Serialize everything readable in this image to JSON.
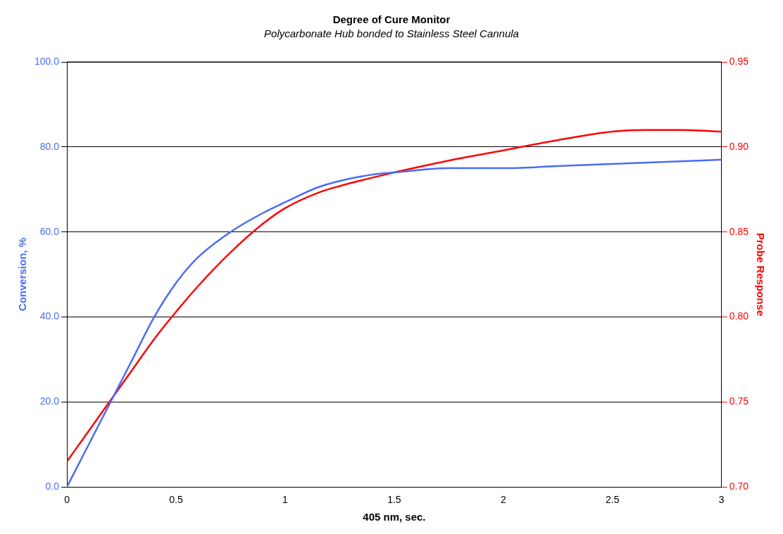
{
  "chart_data": {
    "type": "line",
    "title": "Degree of Cure Monitor",
    "subtitle": "Polycarbonate Hub bonded to Stainless Steel Cannula",
    "xlabel": "405 nm, sec.",
    "ylabel": "Conversion, %",
    "y2label": "Probe Response",
    "xlim": [
      0,
      3
    ],
    "xticks": [
      0,
      0.5,
      1,
      1.5,
      2,
      2.5,
      3
    ],
    "ylim": [
      0,
      100
    ],
    "yticks": [
      {
        "value": 0,
        "label": "0.0"
      },
      {
        "value": 20,
        "label": "20.0"
      },
      {
        "value": 40,
        "label": "40.0"
      },
      {
        "value": 60,
        "label": "60.0"
      },
      {
        "value": 80,
        "label": "80.0"
      },
      {
        "value": 100,
        "label": "100.0"
      }
    ],
    "y2lim": [
      0.7,
      0.95
    ],
    "y2ticks": [
      {
        "value": 0.7,
        "label": "0.70"
      },
      {
        "value": 0.75,
        "label": "0.75"
      },
      {
        "value": 0.8,
        "label": "0.80"
      },
      {
        "value": 0.85,
        "label": "0.85"
      },
      {
        "value": 0.9,
        "label": "0.90"
      },
      {
        "value": 0.95,
        "label": "0.95"
      }
    ],
    "grid": "y",
    "legend": false,
    "marker": "none",
    "line_style": "solid",
    "series": [
      {
        "color": "#4a6cf7",
        "x": [
          0,
          0.1,
          0.2,
          0.3,
          0.4,
          0.5,
          0.6,
          0.75,
          0.9,
          1,
          1.15,
          1.25,
          1.4,
          1.5,
          1.75,
          2,
          2.25,
          2.5,
          2.75,
          3
        ],
        "values": [
          0,
          10,
          20,
          30,
          40,
          48,
          54,
          60,
          64.5,
          67,
          70.5,
          72,
          73.5,
          74,
          75,
          75,
          75.5,
          76,
          76.5,
          77
        ]
      },
      {
        "color": "#ff0000",
        "axis": "y2",
        "x": [
          0,
          0.1,
          0.2,
          0.3,
          0.4,
          0.5,
          0.6,
          0.75,
          0.9,
          1,
          1.15,
          1.25,
          1.5,
          1.75,
          2,
          2.25,
          2.5,
          2.65,
          2.8,
          3
        ],
        "values": [
          0.715,
          0.733,
          0.751,
          0.769,
          0.787,
          0.803,
          0.818,
          0.838,
          0.855,
          0.864,
          0.873,
          0.877,
          0.885,
          0.892,
          0.898,
          0.904,
          0.909,
          0.91,
          0.91,
          0.909
        ]
      }
    ]
  }
}
